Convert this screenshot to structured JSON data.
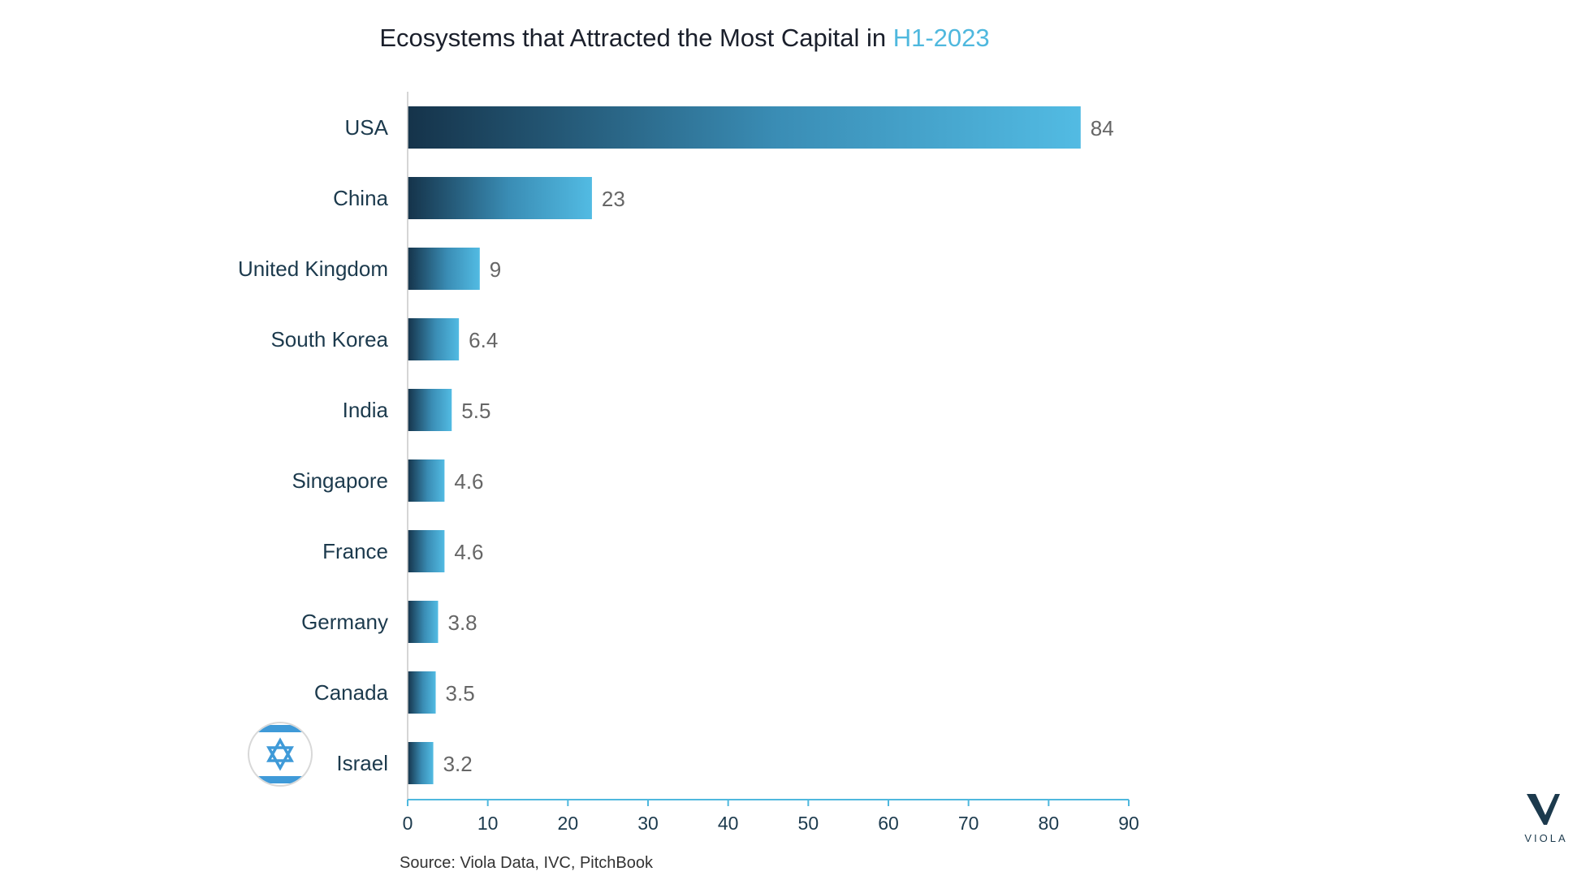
{
  "chart_data": {
    "type": "bar",
    "orientation": "horizontal",
    "title": "Ecosystems that Attracted the Most Capital in ",
    "title_highlight": "H1-2023",
    "categories": [
      "USA",
      "China",
      "United Kingdom",
      "South Korea",
      "India",
      "Singapore",
      "France",
      "Germany",
      "Canada",
      "Israel"
    ],
    "values": [
      84,
      23,
      9,
      6.4,
      5.5,
      4.6,
      4.6,
      3.8,
      3.5,
      3.2
    ],
    "value_labels": [
      "84",
      "23",
      "9",
      "6.4",
      "5.5",
      "4.6",
      "4.6",
      "3.8",
      "3.5",
      "3.2"
    ],
    "xlim": [
      0,
      90
    ],
    "xticks": [
      "0",
      "10",
      "20",
      "30",
      "40",
      "50",
      "60",
      "70",
      "80",
      "90"
    ],
    "xlabel": "",
    "ylabel": "",
    "grid": false,
    "legend": "none",
    "highlighted_category": "Israel",
    "colors": {
      "bar_dark": "#15334a",
      "bar_light": "#52bbe3",
      "axis": "#4fb8de",
      "title_accent": "#4fb8de",
      "flag_blue": "#3f9ad8"
    }
  },
  "source": "Source: Viola Data, IVC, PitchBook",
  "logo": {
    "text": "VIOLA",
    "icon": "viola-v-logo-icon"
  },
  "flag": {
    "icon": "israel-flag-icon"
  }
}
